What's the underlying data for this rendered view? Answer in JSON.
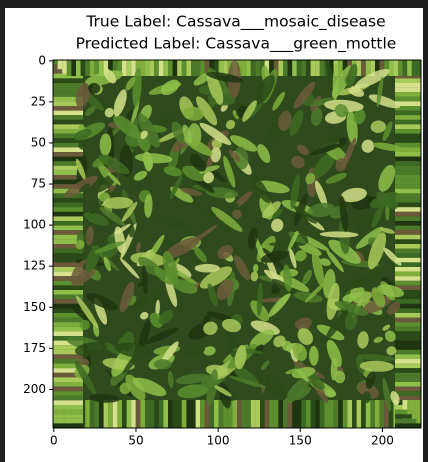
{
  "chart_data": {
    "type": "image",
    "title": "True Label: Cassava___mosaic_disease",
    "subtitle": "Predicted Label: Cassava___green_mottle",
    "xlim": [
      -0.5,
      223.5
    ],
    "ylim": [
      223.5,
      -0.5
    ],
    "xticks": [
      0,
      50,
      100,
      150,
      200
    ],
    "yticks": [
      0,
      25,
      50,
      75,
      100,
      125,
      150,
      175,
      200
    ]
  }
}
